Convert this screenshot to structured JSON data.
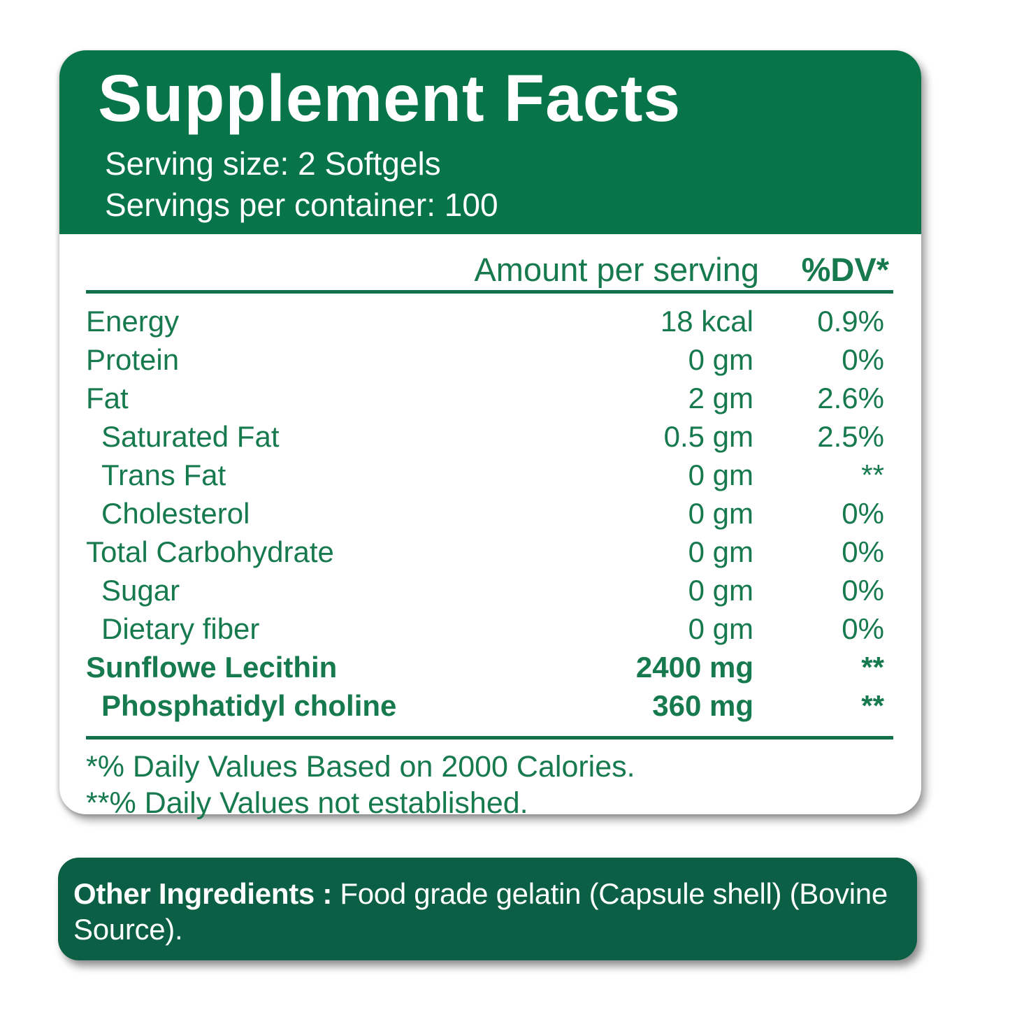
{
  "label": {
    "title": "Supplement Facts",
    "serving_size": "Serving size: 2 Softgels",
    "servings_per_container": "Servings per container: 100",
    "columns": {
      "amount": "Amount per serving",
      "dv": "%DV*"
    },
    "rows": [
      {
        "name": "Energy",
        "amount": "18 kcal",
        "dv": "0.9%",
        "indent": false,
        "bold": false
      },
      {
        "name": "Protein",
        "amount": "0 gm",
        "dv": "0%",
        "indent": false,
        "bold": false
      },
      {
        "name": "Fat",
        "amount": "2 gm",
        "dv": "2.6%",
        "indent": false,
        "bold": false
      },
      {
        "name": "Saturated Fat",
        "amount": "0.5 gm",
        "dv": "2.5%",
        "indent": true,
        "bold": false
      },
      {
        "name": "Trans Fat",
        "amount": "0 gm",
        "dv": "**",
        "indent": true,
        "bold": false
      },
      {
        "name": "Cholesterol",
        "amount": "0 gm",
        "dv": "0%",
        "indent": true,
        "bold": false
      },
      {
        "name": "Total Carbohydrate",
        "amount": "0 gm",
        "dv": "0%",
        "indent": false,
        "bold": false
      },
      {
        "name": "Sugar",
        "amount": "0 gm",
        "dv": "0%",
        "indent": true,
        "bold": false
      },
      {
        "name": "Dietary fiber",
        "amount": "0 gm",
        "dv": "0%",
        "indent": true,
        "bold": false
      },
      {
        "name": "Sunflowe Lecithin",
        "amount": "2400 mg",
        "dv": "**",
        "indent": false,
        "bold": true
      },
      {
        "name": "Phosphatidyl choline",
        "amount": "360 mg",
        "dv": "**",
        "indent": true,
        "bold": true
      }
    ],
    "footnotes": {
      "line1": "*% Daily Values Based on 2000 Calories.",
      "line2": "**% Daily Values not established."
    },
    "other_ingredients": {
      "label": "Other Ingredients :",
      "text": " Food grade gelatin (Capsule shell) (Bovine Source)."
    }
  },
  "colors": {
    "header_green": "#077549",
    "text_green": "#177a4e",
    "footer_green": "#0b5f44",
    "text_white": "#ffffff"
  }
}
